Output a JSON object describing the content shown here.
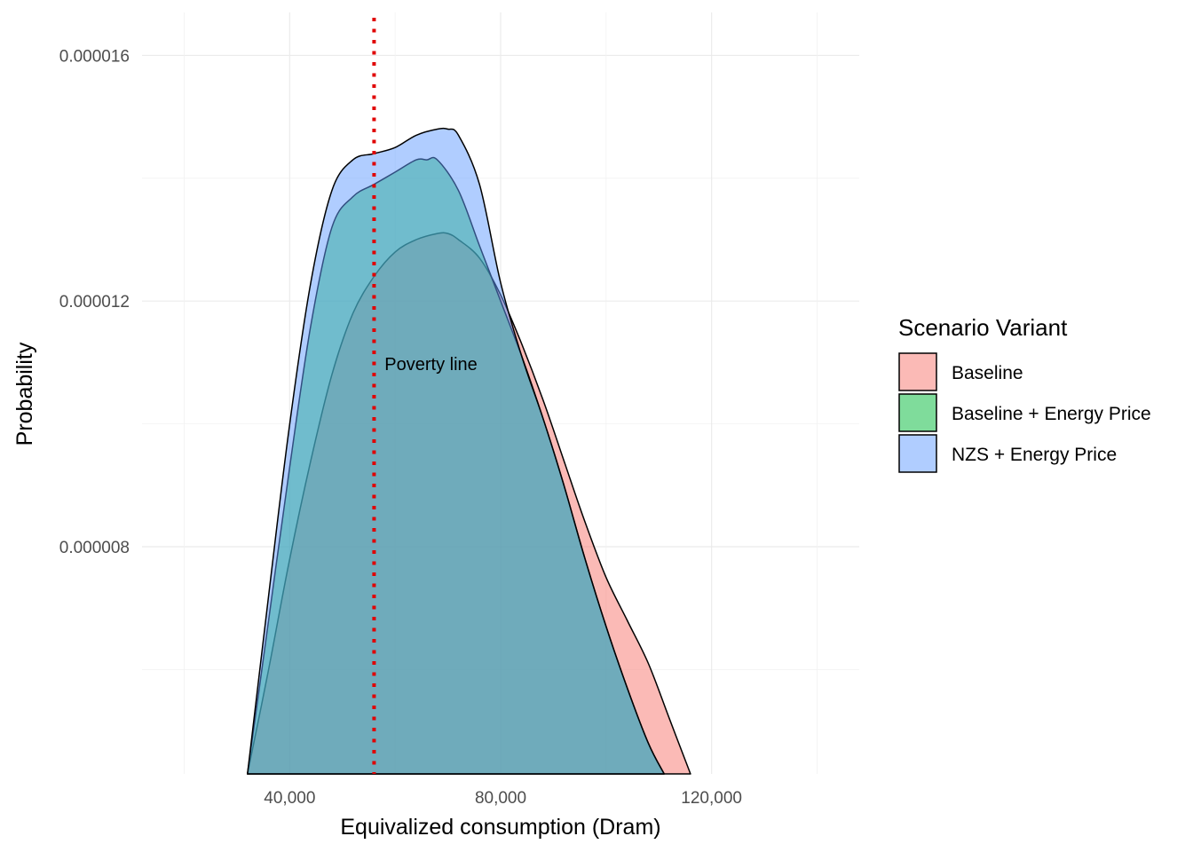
{
  "chart_data": {
    "type": "area",
    "xlabel": "Equivalized consumption (Dram)",
    "ylabel": "Probability",
    "xlim": [
      12000,
      148000
    ],
    "ylim": [
      4.3e-06,
      1.67e-05
    ],
    "x_ticks": [
      40000,
      80000,
      120000
    ],
    "x_tick_labels": [
      "40,000",
      "80,000",
      "120,000"
    ],
    "y_ticks": [
      8e-06,
      1.2e-05,
      1.6e-05
    ],
    "y_tick_labels": [
      "0.000008",
      "0.000012",
      "0.000016"
    ],
    "grid": true,
    "legend": {
      "title": "Scenario Variant",
      "position": "right"
    },
    "annotations": [
      {
        "type": "vline",
        "x": 56000,
        "color": "#e00000",
        "style": "dotted"
      },
      {
        "type": "text",
        "text": "Poverty line",
        "x": 58000,
        "y": 1.098e-05
      }
    ],
    "series": [
      {
        "name": "Baseline",
        "fill": "#f8766d",
        "x": [
          32000,
          36000,
          40000,
          44000,
          48000,
          52000,
          56000,
          60000,
          64000,
          68000,
          70000,
          72000,
          76000,
          80000,
          84000,
          88000,
          92000,
          96000,
          100000,
          104000,
          108000,
          112000,
          116000
        ],
        "y": [
          4.3e-06,
          6e-06,
          7.8e-06,
          9.4e-06,
          1.08e-05,
          1.18e-05,
          1.24e-05,
          1.28e-05,
          1.3e-05,
          1.31e-05,
          1.31e-05,
          1.3e-05,
          1.27e-05,
          1.21e-05,
          1.13e-05,
          1.04e-05,
          9.4e-06,
          8.4e-06,
          7.5e-06,
          6.8e-06,
          6.1e-06,
          5.2e-06,
          4.3e-06
        ]
      },
      {
        "name": "Baseline + Energy Price",
        "fill": "#00ba38",
        "x": [
          32000,
          36000,
          40000,
          44000,
          48000,
          52000,
          56000,
          60000,
          64000,
          66000,
          68000,
          72000,
          76000,
          80000,
          84000,
          88000,
          92000,
          96000,
          100000,
          104000,
          108000,
          111000
        ],
        "y": [
          4.3e-06,
          6.8e-06,
          9.3e-06,
          1.16e-05,
          1.32e-05,
          1.37e-05,
          1.39e-05,
          1.41e-05,
          1.43e-05,
          1.43e-05,
          1.43e-05,
          1.38e-05,
          1.29e-05,
          1.2e-05,
          1.11e-05,
          1.01e-05,
          9e-06,
          7.8e-06,
          6.7e-06,
          5.7e-06,
          4.8e-06,
          4.3e-06
        ]
      },
      {
        "name": "NZS + Energy Price",
        "fill": "#619cff",
        "x": [
          32000,
          36000,
          40000,
          44000,
          48000,
          52000,
          56000,
          60000,
          64000,
          68000,
          70000,
          72000,
          76000,
          80000,
          84000,
          88000,
          92000,
          96000,
          100000,
          104000,
          108000,
          111000
        ],
        "y": [
          4.3e-06,
          7.2e-06,
          1e-05,
          1.23e-05,
          1.38e-05,
          1.43e-05,
          1.44e-05,
          1.45e-05,
          1.47e-05,
          1.48e-05,
          1.48e-05,
          1.47e-05,
          1.39e-05,
          1.23e-05,
          1.11e-05,
          1.01e-05,
          9e-06,
          7.8e-06,
          6.7e-06,
          5.7e-06,
          4.8e-06,
          4.3e-06
        ]
      }
    ]
  }
}
